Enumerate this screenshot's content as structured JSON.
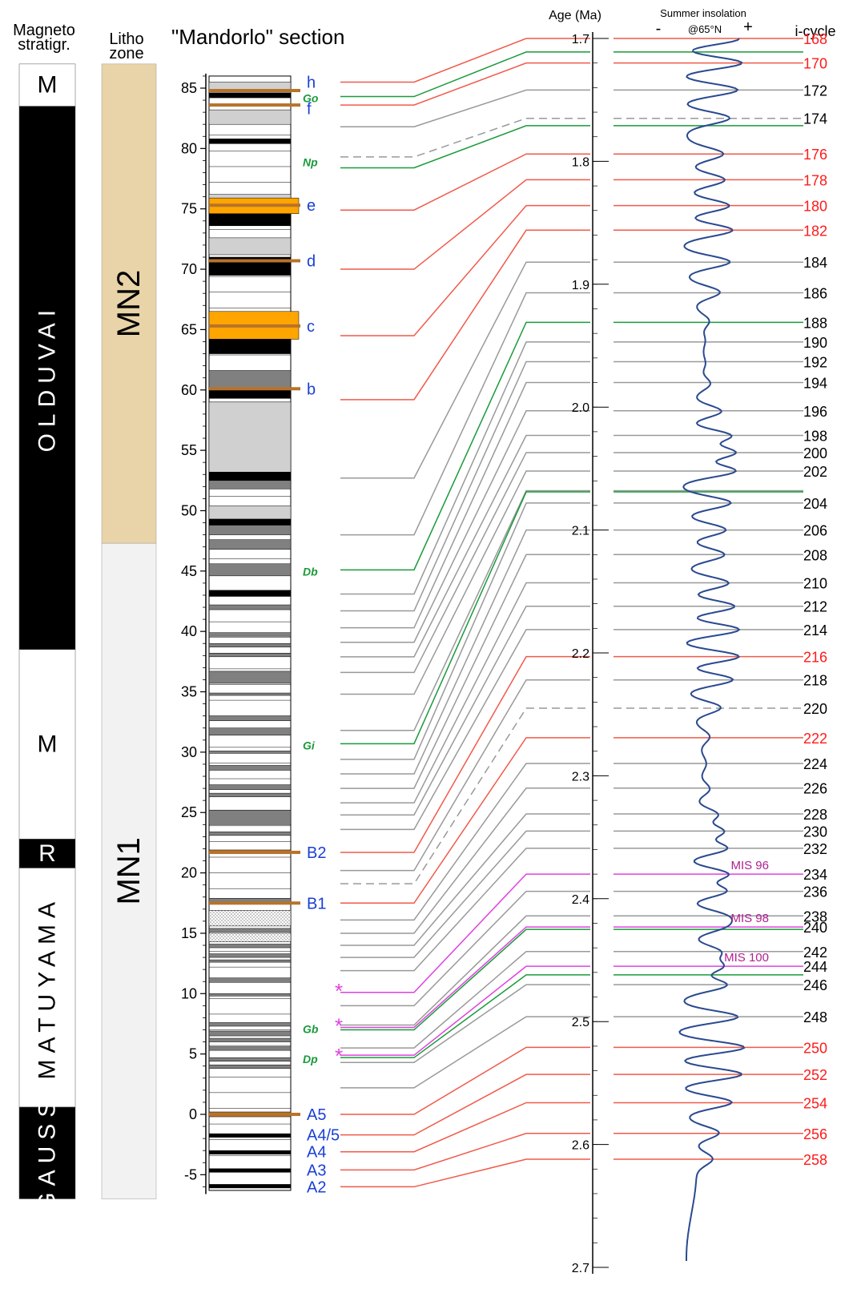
{
  "headers": {
    "magneto": [
      "Magneto",
      "stratigr."
    ],
    "litho": [
      "Litho",
      "zone"
    ],
    "section": "\"Mandorlo\" section",
    "age": "Age (Ma)",
    "insolation": "Summer insolation",
    "insolation_lat": "@65°N",
    "minus": "-",
    "plus": "+",
    "icycle": "i-cycle"
  },
  "magnetostratigraphy": [
    {
      "label": "M",
      "from": 87,
      "to": 83.5,
      "fill": "#ffffff",
      "text": "#000000"
    },
    {
      "label": "OLDUVAI",
      "from": 83.5,
      "to": 38.5,
      "fill": "#000000",
      "text": "#ffffff"
    },
    {
      "label": "M",
      "from": 38.5,
      "to": 22.8,
      "fill": "#ffffff",
      "text": "#000000"
    },
    {
      "label": "R",
      "from": 22.8,
      "to": 20.4,
      "fill": "#000000",
      "text": "#ffffff"
    },
    {
      "label": "MATUYAMA",
      "from": 20.4,
      "to": 0.6,
      "fill": "#ffffff",
      "text": "#000000"
    },
    {
      "label": "GAUSS",
      "from": 0.6,
      "to": -7.0,
      "fill": "#000000",
      "text": "#ffffff"
    }
  ],
  "litho_zones": [
    {
      "label": "MN2",
      "from": 87,
      "to": 47.3,
      "fill": "#e8d4a8"
    },
    {
      "label": "MN1",
      "from": 47.3,
      "to": -7.0,
      "fill": "#f2f2f2"
    }
  ],
  "depth_axis": {
    "min": -6,
    "max": 86,
    "ticks": [
      85,
      80,
      75,
      70,
      65,
      60,
      55,
      50,
      45,
      40,
      35,
      30,
      25,
      20,
      15,
      10,
      5,
      0,
      -5
    ]
  },
  "age_axis": {
    "min": 1.7,
    "max": 2.7,
    "ticks": [
      "1.7",
      "1.8",
      "1.9",
      "2.0",
      "2.1",
      "2.2",
      "2.3",
      "2.4",
      "2.5",
      "2.6",
      "2.7"
    ]
  },
  "lithology_colors": {
    "white": "#ffffff",
    "light": "#d0d0d0",
    "dark": "#808080",
    "black": "#000000",
    "orange": "#ffa500",
    "sapropel": "#b8732a"
  },
  "lithology": [
    {
      "from": 85.5,
      "to": 84.6,
      "kind": "light"
    },
    {
      "from": 84.6,
      "to": 84.2,
      "kind": "black"
    },
    {
      "from": 83.2,
      "to": 82.0,
      "kind": "light"
    },
    {
      "from": 80.8,
      "to": 80.4,
      "kind": "black"
    },
    {
      "from": 76.2,
      "to": 75.4,
      "kind": "light"
    },
    {
      "from": 75.9,
      "to": 74.6,
      "kind": "orange"
    },
    {
      "from": 74.6,
      "to": 73.6,
      "kind": "black"
    },
    {
      "from": 72.6,
      "to": 71.2,
      "kind": "light"
    },
    {
      "from": 71.0,
      "to": 69.5,
      "kind": "black"
    },
    {
      "from": 66.5,
      "to": 64.2,
      "kind": "orange"
    },
    {
      "from": 64.2,
      "to": 63.0,
      "kind": "black"
    },
    {
      "from": 61.6,
      "to": 60.0,
      "kind": "dark"
    },
    {
      "from": 60.0,
      "to": 59.3,
      "kind": "black"
    },
    {
      "from": 59.0,
      "to": 53.2,
      "kind": "light"
    },
    {
      "from": 53.2,
      "to": 52.5,
      "kind": "black"
    },
    {
      "from": 52.5,
      "to": 51.8,
      "kind": "dark"
    },
    {
      "from": 50.4,
      "to": 49.3,
      "kind": "light"
    },
    {
      "from": 49.3,
      "to": 48.8,
      "kind": "black"
    },
    {
      "from": 48.8,
      "to": 48.0,
      "kind": "dark"
    },
    {
      "from": 47.6,
      "to": 46.8,
      "kind": "dark"
    },
    {
      "from": 45.6,
      "to": 44.6,
      "kind": "dark"
    },
    {
      "from": 43.4,
      "to": 42.9,
      "kind": "black"
    },
    {
      "from": 42.2,
      "to": 41.8,
      "kind": "dark"
    },
    {
      "from": 39.9,
      "to": 39.6,
      "kind": "dark"
    },
    {
      "from": 39.0,
      "to": 38.7,
      "kind": "dark"
    },
    {
      "from": 38.2,
      "to": 37.9,
      "kind": "dark"
    },
    {
      "from": 36.7,
      "to": 35.7,
      "kind": "dark"
    },
    {
      "from": 34.9,
      "to": 34.7,
      "kind": "dark"
    },
    {
      "from": 33.0,
      "to": 32.6,
      "kind": "dark"
    },
    {
      "from": 32.0,
      "to": 31.4,
      "kind": "dark"
    },
    {
      "from": 30.1,
      "to": 29.9,
      "kind": "dark"
    },
    {
      "from": 28.9,
      "to": 28.5,
      "kind": "dark"
    },
    {
      "from": 27.3,
      "to": 26.9,
      "kind": "dark"
    },
    {
      "from": 26.6,
      "to": 26.3,
      "kind": "dark"
    },
    {
      "from": 25.2,
      "to": 24.0,
      "kind": "dark"
    },
    {
      "from": 23.4,
      "to": 23.1,
      "kind": "dark"
    },
    {
      "from": 21.9,
      "to": 21.6,
      "kind": "sapropel"
    },
    {
      "from": 17.9,
      "to": 17.4,
      "kind": "dark"
    },
    {
      "from": 16.9,
      "to": 15.6,
      "kind": "dotted"
    },
    {
      "from": 15.4,
      "to": 15.1,
      "kind": "dark"
    },
    {
      "from": 15.0,
      "to": 14.3,
      "kind": "dotted"
    },
    {
      "from": 14.1,
      "to": 13.8,
      "kind": "dark"
    },
    {
      "from": 13.3,
      "to": 13.0,
      "kind": "dark"
    },
    {
      "from": 12.8,
      "to": 12.6,
      "kind": "dark"
    },
    {
      "from": 11.3,
      "to": 11.0,
      "kind": "dark"
    },
    {
      "from": 10.0,
      "to": 9.8,
      "kind": "dark"
    },
    {
      "from": 7.6,
      "to": 7.3,
      "kind": "dark"
    },
    {
      "from": 6.9,
      "to": 6.5,
      "kind": "dark"
    },
    {
      "from": 6.3,
      "to": 6.0,
      "kind": "dark"
    },
    {
      "from": 5.6,
      "to": 5.3,
      "kind": "dark"
    },
    {
      "from": 4.7,
      "to": 4.4,
      "kind": "dark"
    },
    {
      "from": 4.1,
      "to": 3.8,
      "kind": "dark"
    },
    {
      "from": 0.2,
      "to": -0.2,
      "kind": "sapropel"
    },
    {
      "from": -1.6,
      "to": -1.9,
      "kind": "black"
    },
    {
      "from": -3.0,
      "to": -3.3,
      "kind": "black"
    },
    {
      "from": -4.5,
      "to": -4.8,
      "kind": "black"
    },
    {
      "from": -5.8,
      "to": -6.1,
      "kind": "black"
    }
  ],
  "sapropels": [
    84.8,
    83.6,
    75.3,
    70.7,
    65.3,
    60.1,
    21.7,
    17.5,
    0
  ],
  "layer_labels": [
    {
      "text": "h",
      "depth": 85.5,
      "color": "#1a3fd6",
      "italic": false
    },
    {
      "text": "Go",
      "depth": 84.3,
      "color": "#1a9a3a",
      "italic": true
    },
    {
      "text": "f",
      "depth": 83.3,
      "color": "#1a3fd6",
      "italic": false
    },
    {
      "text": "Np",
      "depth": 79.0,
      "color": "#1a9a3a",
      "italic": true
    },
    {
      "text": "e",
      "depth": 75.3,
      "color": "#1a3fd6",
      "italic": false
    },
    {
      "text": "d",
      "depth": 70.7,
      "color": "#1a3fd6",
      "italic": false
    },
    {
      "text": "c",
      "depth": 65.3,
      "color": "#1a3fd6",
      "italic": false
    },
    {
      "text": "b",
      "depth": 60.1,
      "color": "#1a3fd6",
      "italic": false
    },
    {
      "text": "Db",
      "depth": 45.1,
      "color": "#1a9a3a",
      "italic": true
    },
    {
      "text": "Gi",
      "depth": 30.7,
      "color": "#1a9a3a",
      "italic": true
    },
    {
      "text": "B2",
      "depth": 21.7,
      "color": "#1a3fd6",
      "italic": false
    },
    {
      "text": "B1",
      "depth": 17.5,
      "color": "#1a3fd6",
      "italic": false
    },
    {
      "text": "*",
      "depth": 10.1,
      "color": "#e040e0",
      "italic": false
    },
    {
      "text": "Gb",
      "depth": 7.2,
      "color": "#1a9a3a",
      "italic": true
    },
    {
      "text": "*",
      "depth": 7.2,
      "color": "#e040e0",
      "italic": false
    },
    {
      "text": "Dp",
      "depth": 4.7,
      "color": "#1a9a3a",
      "italic": true
    },
    {
      "text": "*",
      "depth": 4.7,
      "color": "#e040e0",
      "italic": false
    },
    {
      "text": "A5",
      "depth": 0.0,
      "color": "#1a3fd6",
      "italic": false
    },
    {
      "text": "A4/5",
      "depth": -1.7,
      "color": "#1a3fd6",
      "italic": false
    },
    {
      "text": "A4",
      "depth": -3.1,
      "color": "#1a3fd6",
      "italic": false
    },
    {
      "text": "A3",
      "depth": -4.6,
      "color": "#1a3fd6",
      "italic": false
    },
    {
      "text": "A2",
      "depth": -6.0,
      "color": "#1a3fd6",
      "italic": false
    }
  ],
  "line_colors": {
    "red": "#f05a4a",
    "gray": "#999999",
    "green": "#1a9a3a",
    "magenta": "#e040e0"
  },
  "tie_lines": [
    {
      "depth": 85.5,
      "age": 1.7,
      "color": "red",
      "cycle": "168"
    },
    {
      "depth": 84.3,
      "age": 1.711,
      "color": "green",
      "cycle": ""
    },
    {
      "depth": 83.6,
      "age": 1.72,
      "color": "red",
      "cycle": "170"
    },
    {
      "depth": 81.8,
      "age": 1.742,
      "color": "gray",
      "cycle": "172"
    },
    {
      "depth": 79.3,
      "age": 1.765,
      "color": "gray",
      "dashed": true,
      "cycle": "174"
    },
    {
      "depth": 78.4,
      "age": 1.771,
      "color": "green",
      "cycle": ""
    },
    {
      "depth": 74.9,
      "age": 1.794,
      "color": "red",
      "cycle": "176"
    },
    {
      "depth": 70.0,
      "age": 1.815,
      "color": "red",
      "cycle": "178"
    },
    {
      "depth": 64.5,
      "age": 1.836,
      "color": "red",
      "cycle": "180"
    },
    {
      "depth": 59.2,
      "age": 1.856,
      "color": "red",
      "cycle": "182"
    },
    {
      "depth": 52.7,
      "age": 1.882,
      "color": "gray",
      "cycle": "184"
    },
    {
      "depth": 48.0,
      "age": 1.907,
      "color": "gray",
      "cycle": "186"
    },
    {
      "depth": 45.1,
      "age": 1.931,
      "color": "green",
      "cycle": "188"
    },
    {
      "depth": 43.1,
      "age": 1.947,
      "color": "gray",
      "cycle": "190"
    },
    {
      "depth": 41.7,
      "age": 1.963,
      "color": "gray",
      "cycle": "192"
    },
    {
      "depth": 40.3,
      "age": 1.98,
      "color": "gray",
      "cycle": "194"
    },
    {
      "depth": 39.1,
      "age": 2.003,
      "color": "gray",
      "cycle": "196"
    },
    {
      "depth": 37.9,
      "age": 2.023,
      "color": "gray",
      "cycle": "198"
    },
    {
      "depth": 36.6,
      "age": 2.037,
      "color": "gray",
      "cycle": "200"
    },
    {
      "depth": 34.8,
      "age": 2.052,
      "color": "gray",
      "cycle": "202"
    },
    {
      "depth": 31.8,
      "age": 2.068,
      "color": "gray",
      "cycle": ""
    },
    {
      "depth": 30.7,
      "age": 2.069,
      "color": "green",
      "cycle": ""
    },
    {
      "depth": 29.4,
      "age": 2.078,
      "color": "gray",
      "cycle": "204"
    },
    {
      "depth": 28.2,
      "age": 2.1,
      "color": "gray",
      "cycle": "206"
    },
    {
      "depth": 27.0,
      "age": 2.12,
      "color": "gray",
      "cycle": "208"
    },
    {
      "depth": 25.8,
      "age": 2.143,
      "color": "gray",
      "cycle": "210"
    },
    {
      "depth": 24.8,
      "age": 2.162,
      "color": "gray",
      "cycle": "212"
    },
    {
      "depth": 23.6,
      "age": 2.181,
      "color": "gray",
      "cycle": "214"
    },
    {
      "depth": 21.7,
      "age": 2.203,
      "color": "red",
      "cycle": "216"
    },
    {
      "depth": 20.2,
      "age": 2.222,
      "color": "gray",
      "cycle": "218"
    },
    {
      "depth": 19.1,
      "age": 2.245,
      "color": "gray",
      "dashed": true,
      "cycle": "220"
    },
    {
      "depth": 17.5,
      "age": 2.269,
      "color": "red",
      "cycle": "222"
    },
    {
      "depth": 16.1,
      "age": 2.29,
      "color": "gray",
      "cycle": "224"
    },
    {
      "depth": 15.0,
      "age": 2.31,
      "color": "gray",
      "cycle": "226"
    },
    {
      "depth": 14.0,
      "age": 2.331,
      "color": "gray",
      "cycle": "228"
    },
    {
      "depth": 13.0,
      "age": 2.345,
      "color": "gray",
      "cycle": "230"
    },
    {
      "depth": 11.9,
      "age": 2.359,
      "color": "gray",
      "cycle": "232"
    },
    {
      "depth": 10.1,
      "age": 2.38,
      "color": "magenta",
      "cycle": "234",
      "mis": "MIS 96"
    },
    {
      "depth": 9.0,
      "age": 2.394,
      "color": "gray",
      "cycle": "236"
    },
    {
      "depth": 7.4,
      "age": 2.414,
      "color": "gray",
      "cycle": "238"
    },
    {
      "depth": 7.2,
      "age": 2.423,
      "color": "magenta",
      "cycle": "240",
      "mis": "MIS 98"
    },
    {
      "depth": 7.0,
      "age": 2.425,
      "color": "green",
      "cycle": ""
    },
    {
      "depth": 5.5,
      "age": 2.443,
      "color": "gray",
      "cycle": "242"
    },
    {
      "depth": 4.9,
      "age": 2.455,
      "color": "magenta",
      "cycle": "244",
      "mis": "MIS 100"
    },
    {
      "depth": 4.7,
      "age": 2.462,
      "color": "green",
      "cycle": ""
    },
    {
      "depth": 4.3,
      "age": 2.47,
      "color": "gray",
      "cycle": "246"
    },
    {
      "depth": 2.2,
      "age": 2.496,
      "color": "gray",
      "cycle": "248"
    },
    {
      "depth": 0.0,
      "age": 2.521,
      "color": "red",
      "cycle": "250"
    },
    {
      "depth": -1.7,
      "age": 2.543,
      "color": "red",
      "cycle": "252"
    },
    {
      "depth": -3.1,
      "age": 2.566,
      "color": "red",
      "cycle": "254"
    },
    {
      "depth": -4.6,
      "age": 2.591,
      "color": "red",
      "cycle": "256"
    },
    {
      "depth": -6.0,
      "age": 2.612,
      "color": "red",
      "cycle": "258"
    }
  ],
  "insolation_curve": [
    1.7,
    1.72,
    1.74,
    1.76,
    1.78,
    1.8,
    1.82,
    1.84,
    1.86,
    1.88,
    1.9,
    1.92,
    1.94,
    1.96,
    1.98,
    2.0,
    2.02,
    2.04,
    2.06,
    2.08,
    2.1,
    2.12,
    2.14,
    2.16,
    2.18,
    2.2,
    2.22,
    2.24,
    2.26,
    2.28,
    2.3,
    2.32,
    2.34,
    2.36,
    2.38,
    2.4,
    2.42,
    2.44,
    2.46,
    2.48,
    2.5,
    2.52,
    2.54,
    2.56,
    2.58,
    2.6,
    2.62,
    2.64,
    2.66,
    2.68,
    2.7
  ],
  "cycle_colors": {
    "red": "#ff1a1a",
    "gray": "#000000",
    "green": "#000000",
    "magenta": "#000000"
  },
  "mis_color": "#b02090"
}
